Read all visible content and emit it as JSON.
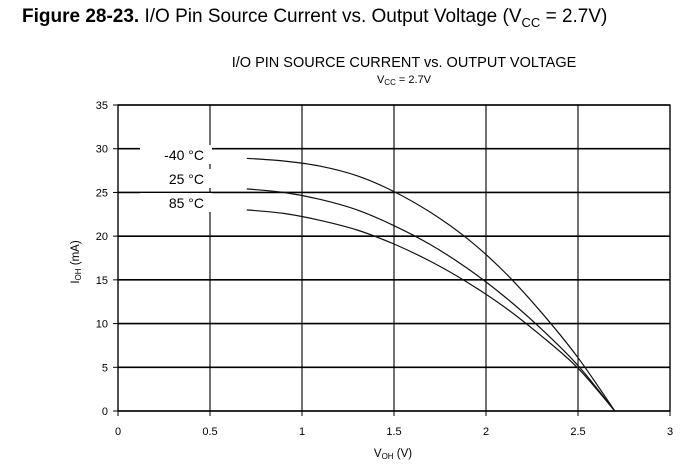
{
  "caption": {
    "number": "Figure 28-23.",
    "text_main": "I/O Pin Source Current vs. Output Voltage (V",
    "text_sub": "CC",
    "text_tail": " = 2.7V)"
  },
  "chart_data": {
    "type": "line",
    "title": "I/O PIN SOURCE CURRENT vs. OUTPUT VOLTAGE",
    "subtitle_main": "V",
    "subtitle_sub": "CC",
    "subtitle_tail": " = 2.7V",
    "xlabel_main": "V",
    "xlabel_sub": "OH",
    "xlabel_tail": " (V)",
    "ylabel_main": "I",
    "ylabel_sub": "OH",
    "ylabel_tail": " (mA)",
    "xlim": [
      0,
      3
    ],
    "ylim": [
      0,
      35
    ],
    "xticks": [
      "0",
      "0.5",
      "1",
      "1.5",
      "2",
      "2.5",
      "3"
    ],
    "yticks": [
      "0",
      "5",
      "10",
      "15",
      "20",
      "25",
      "30",
      "35"
    ],
    "grid": true,
    "legend_placement": "left, beside curve starts",
    "series": [
      {
        "name": "-40 °C",
        "x": [
          0.7,
          0.9,
          1.1,
          1.3,
          1.5,
          1.7,
          1.9,
          2.1,
          2.3,
          2.5,
          2.7
        ],
        "y": [
          28.9,
          28.6,
          28.0,
          26.9,
          25.1,
          22.7,
          19.7,
          15.9,
          11.3,
          6.1,
          0
        ]
      },
      {
        "name": "25 °C",
        "x": [
          0.7,
          0.9,
          1.1,
          1.3,
          1.5,
          1.7,
          1.9,
          2.1,
          2.3,
          2.5,
          2.7
        ],
        "y": [
          25.4,
          25.0,
          24.2,
          23.0,
          21.2,
          19.0,
          16.3,
          13.1,
          9.4,
          5.2,
          0
        ]
      },
      {
        "name": "85 °C",
        "x": [
          0.7,
          0.9,
          1.1,
          1.3,
          1.5,
          1.7,
          1.9,
          2.1,
          2.3,
          2.5,
          2.7
        ],
        "y": [
          23.0,
          22.6,
          21.8,
          20.7,
          19.1,
          17.1,
          14.7,
          11.9,
          8.6,
          4.9,
          0
        ]
      }
    ]
  }
}
